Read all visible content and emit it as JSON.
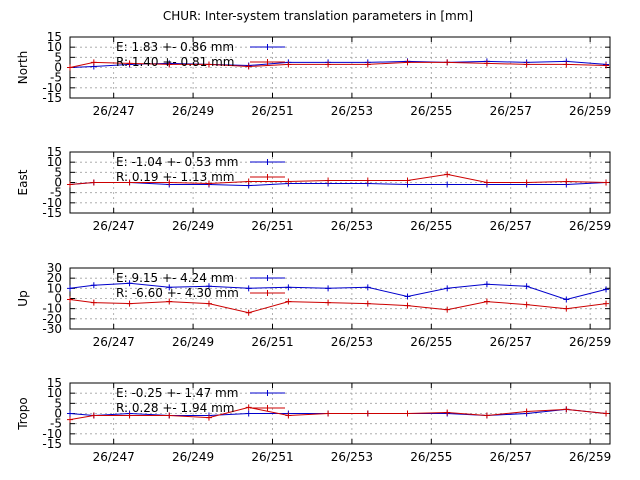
{
  "title": "CHUR: Inter-system translation parameters in [mm]",
  "x_ticks": [
    "26/247",
    "26/249",
    "26/251",
    "26/253",
    "26/255",
    "26/257",
    "26/259"
  ],
  "colors": {
    "E": "#0000cc",
    "R": "#cc0000",
    "grid": "#a0a0a0"
  },
  "chart_data": [
    {
      "type": "line",
      "ylabel": "North",
      "ylim": [
        -15,
        15
      ],
      "yticks": [
        "15",
        "10",
        "5",
        "0",
        "-5",
        "-10",
        "-15"
      ],
      "xlim": [
        245.9,
        259.5
      ],
      "grid": true,
      "legend_position": "top-left",
      "x_tick_values": [
        247,
        249,
        251,
        253,
        255,
        257,
        259
      ],
      "series": [
        {
          "name": "E",
          "legend": "E:   1.83 +- 0.86 mm",
          "x": [
            245.9,
            246.5,
            247.4,
            248.4,
            249.4,
            250.4,
            251.4,
            252.4,
            253.4,
            254.4,
            255.4,
            256.4,
            257.4,
            258.4,
            259.4
          ],
          "y": [
            0,
            0.5,
            1.5,
            2,
            1.5,
            1,
            2.5,
            2.5,
            2.5,
            3,
            2.5,
            3,
            2.5,
            3,
            1.5
          ]
        },
        {
          "name": "R",
          "legend": "R:   1.40 +- 0.81 mm",
          "x": [
            245.9,
            246.5,
            247.4,
            248.4,
            249.4,
            250.4,
            251.4,
            252.4,
            253.4,
            254.4,
            255.4,
            256.4,
            257.4,
            258.4,
            259.4
          ],
          "y": [
            0,
            2.5,
            2,
            1.5,
            1.5,
            0.5,
            1.5,
            1.5,
            1.5,
            2.5,
            2.5,
            2,
            1.5,
            1.5,
            1
          ]
        }
      ]
    },
    {
      "type": "line",
      "ylabel": "East",
      "ylim": [
        -15,
        15
      ],
      "yticks": [
        "15",
        "10",
        "5",
        "0",
        "-5",
        "-10",
        "-15"
      ],
      "xlim": [
        245.9,
        259.5
      ],
      "grid": true,
      "legend_position": "top-left",
      "x_tick_values": [
        247,
        249,
        251,
        253,
        255,
        257,
        259
      ],
      "series": [
        {
          "name": "E",
          "legend": "E:  -1.04 +- 0.53 mm",
          "x": [
            245.9,
            246.5,
            247.4,
            248.4,
            249.4,
            250.4,
            251.4,
            252.4,
            253.4,
            254.4,
            255.4,
            256.4,
            257.4,
            258.4,
            259.4
          ],
          "y": [
            -1,
            0,
            0,
            -1,
            -1,
            -1.5,
            -0.5,
            -0.5,
            -0.5,
            -1,
            -1,
            -1,
            -1,
            -1,
            0
          ]
        },
        {
          "name": "R",
          "legend": "R:   0.19 +- 1.13 mm",
          "x": [
            245.9,
            246.5,
            247.4,
            248.4,
            249.4,
            250.4,
            251.4,
            252.4,
            253.4,
            254.4,
            255.4,
            256.4,
            257.4,
            258.4,
            259.4
          ],
          "y": [
            -1,
            0,
            0,
            0,
            -0.5,
            0.5,
            0.5,
            1,
            1,
            1,
            4,
            0,
            0,
            0.5,
            0
          ]
        }
      ]
    },
    {
      "type": "line",
      "ylabel": "Up",
      "ylim": [
        -30,
        30
      ],
      "yticks": [
        "30",
        "20",
        "10",
        "0",
        "-10",
        "-20",
        "-30"
      ],
      "xlim": [
        245.9,
        259.5
      ],
      "grid": true,
      "legend_position": "top-left",
      "x_tick_values": [
        247,
        249,
        251,
        253,
        255,
        257,
        259
      ],
      "series": [
        {
          "name": "E",
          "legend": "E:   9.15 +- 4.24 mm",
          "x": [
            245.9,
            246.5,
            247.4,
            248.4,
            249.4,
            250.4,
            251.4,
            252.4,
            253.4,
            254.4,
            255.4,
            256.4,
            257.4,
            258.4,
            259.4
          ],
          "y": [
            10,
            13,
            15,
            11,
            12,
            10,
            11,
            10,
            11,
            2,
            10,
            14,
            12,
            -1,
            9
          ]
        },
        {
          "name": "R",
          "legend": "R:  -6.60 +- 4.30 mm",
          "x": [
            245.9,
            246.5,
            247.4,
            248.4,
            249.4,
            250.4,
            251.4,
            252.4,
            253.4,
            254.4,
            255.4,
            256.4,
            257.4,
            258.4,
            259.4
          ],
          "y": [
            -1,
            -4,
            -5,
            -3,
            -5,
            -14,
            -3,
            -4,
            -5,
            -7,
            -11,
            -3,
            -6,
            -10,
            -5
          ]
        }
      ]
    },
    {
      "type": "line",
      "ylabel": "Tropo",
      "ylim": [
        -15,
        15
      ],
      "yticks": [
        "15",
        "10",
        "5",
        "0",
        "-5",
        "-10",
        "-15"
      ],
      "xlim": [
        245.9,
        259.5
      ],
      "grid": true,
      "legend_position": "top-left",
      "x_tick_values": [
        247,
        249,
        251,
        253,
        255,
        257,
        259
      ],
      "series": [
        {
          "name": "E",
          "legend": "E:  -0.25 +- 1.47 mm",
          "x": [
            245.9,
            246.5,
            247.4,
            248.4,
            249.4,
            250.4,
            251.4,
            252.4,
            253.4,
            254.4,
            255.4,
            256.4,
            257.4,
            258.4,
            259.4
          ],
          "y": [
            0,
            -1,
            0,
            -1,
            -1,
            0,
            0,
            0,
            0,
            0,
            0,
            -1,
            0,
            2,
            0
          ]
        },
        {
          "name": "R",
          "legend": "R:   0.28 +- 1.94 mm",
          "x": [
            245.9,
            246.5,
            247.4,
            248.4,
            249.4,
            250.4,
            251.4,
            252.4,
            253.4,
            254.4,
            255.4,
            256.4,
            257.4,
            258.4,
            259.4
          ],
          "y": [
            -3,
            -1,
            -1,
            -1,
            -2,
            3,
            -1,
            0,
            0,
            0,
            0.5,
            -1,
            1,
            2,
            0
          ]
        }
      ]
    }
  ]
}
